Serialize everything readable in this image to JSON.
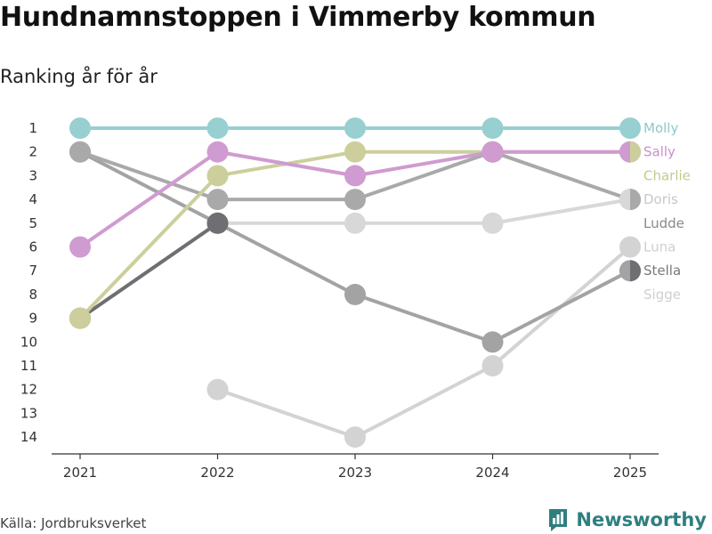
{
  "header": {
    "title": "Hundnamnstoppen i Vimmerby kommun",
    "subtitle": "Ranking år för år"
  },
  "footer": {
    "source": "Källa: Jordbruksverket",
    "brand": "Newsworthy"
  },
  "chart_data": {
    "type": "line",
    "title": "Hundnamnstoppen i Vimmerby kommun",
    "subtitle": "Ranking år för år",
    "xlabel": "",
    "ylabel": "",
    "x": [
      "2021",
      "2022",
      "2023",
      "2024",
      "2025"
    ],
    "ylim": [
      1,
      14
    ],
    "y_inverted": true,
    "yticks": [
      "1",
      "2",
      "3",
      "4",
      "5",
      "6",
      "7",
      "8",
      "9",
      "10",
      "11",
      "12",
      "13",
      "14"
    ],
    "grid": false,
    "legend": "end-labels-right",
    "series": [
      {
        "name": "Luna",
        "color": "#d3d3d3",
        "values": [
          null,
          12,
          14,
          11,
          6
        ]
      },
      {
        "name": "Sigge",
        "color": "#d8d8d8",
        "values": [
          9,
          5,
          5,
          5,
          4
        ]
      },
      {
        "name": "Ludde",
        "color": "#a3a3a3",
        "values": [
          2,
          5,
          8,
          10,
          7
        ]
      },
      {
        "name": "Doris",
        "color": "#a9a9a9",
        "values": [
          2,
          4,
          4,
          2,
          4
        ]
      },
      {
        "name": "Stella",
        "color": "#6e6e73",
        "values": [
          9,
          5,
          null,
          2,
          null
        ]
      },
      {
        "name": "Charlie",
        "color": "#cccf9b",
        "values": [
          9,
          3,
          2,
          2,
          2
        ]
      },
      {
        "name": "Sally",
        "color": "#cf9bd0",
        "values": [
          6,
          2,
          3,
          2,
          2
        ]
      },
      {
        "name": "Molly",
        "color": "#98cfd0",
        "values": [
          1,
          1,
          1,
          1,
          1
        ]
      }
    ],
    "end_labels": [
      {
        "name": "Molly",
        "rank": 1,
        "color": "#8fc8c8"
      },
      {
        "name": "Sally",
        "rank": 2,
        "color": "#c98fcb"
      },
      {
        "name": "Charlie",
        "rank": 3,
        "color": "#c6c98e"
      },
      {
        "name": "Doris",
        "rank": 4,
        "color": "#c8c8c8"
      },
      {
        "name": "Ludde",
        "rank": 5,
        "color": "#8a8a8a"
      },
      {
        "name": "Luna",
        "rank": 6,
        "color": "#cfcfcf"
      },
      {
        "name": "Stella",
        "rank": 7,
        "color": "#7a7a7a"
      },
      {
        "name": "Sigge",
        "rank": 8,
        "color": "#cfcfcf"
      }
    ]
  }
}
